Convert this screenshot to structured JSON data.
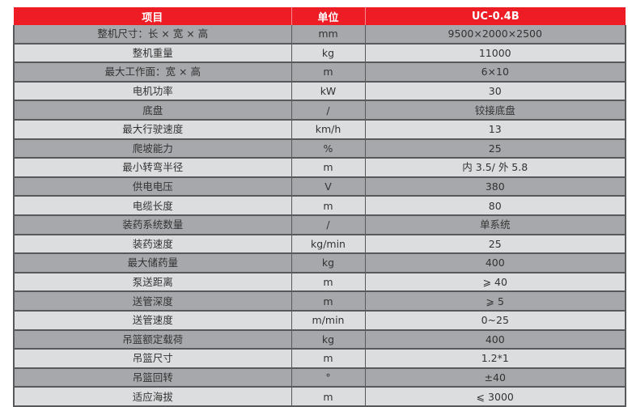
{
  "header": {
    "item": "项目",
    "unit": "单位",
    "model": "UC-0.4B"
  },
  "colors": {
    "header": "#ee1c25",
    "row_dark": "#a7a8ab",
    "row_light": "#dcdddf"
  },
  "rows": [
    {
      "item": "整机尺寸：长 × 宽 × 高",
      "unit": "mm",
      "value": "9500×2000×2500"
    },
    {
      "item": "整机重量",
      "unit": "kg",
      "value": "11000"
    },
    {
      "item": "最大工作面：宽 × 高",
      "unit": "m",
      "value": "6×10"
    },
    {
      "item": "电机功率",
      "unit": "kW",
      "value": "30"
    },
    {
      "item": "底盘",
      "unit": "/",
      "value": "铰接底盘"
    },
    {
      "item": "最大行驶速度",
      "unit": "km/h",
      "value": "13"
    },
    {
      "item": "爬坡能力",
      "unit": "%",
      "value": "25"
    },
    {
      "item": "最小转弯半径",
      "unit": "m",
      "value": "内 3.5/ 外 5.8"
    },
    {
      "item": "供电电压",
      "unit": "V",
      "value": "380"
    },
    {
      "item": "电缆长度",
      "unit": "m",
      "value": "80"
    },
    {
      "item": "装药系统数量",
      "unit": "/",
      "value": "单系统"
    },
    {
      "item": "装药速度",
      "unit": "kg/min",
      "value": "25"
    },
    {
      "item": "最大储药量",
      "unit": "kg",
      "value": "400"
    },
    {
      "item": "泵送距离",
      "unit": "m",
      "value": "⩾ 40"
    },
    {
      "item": "送管深度",
      "unit": "m",
      "value": "⩾ 5"
    },
    {
      "item": "送管速度",
      "unit": "m/min",
      "value": "0~25"
    },
    {
      "item": "吊篮额定载荷",
      "unit": "kg",
      "value": "400"
    },
    {
      "item": "吊篮尺寸",
      "unit": "m",
      "value": "1.2*1"
    },
    {
      "item": "吊篮回转",
      "unit": "°",
      "value": "±40"
    },
    {
      "item": "适应海拔",
      "unit": "m",
      "value": "⩽ 3000"
    }
  ]
}
